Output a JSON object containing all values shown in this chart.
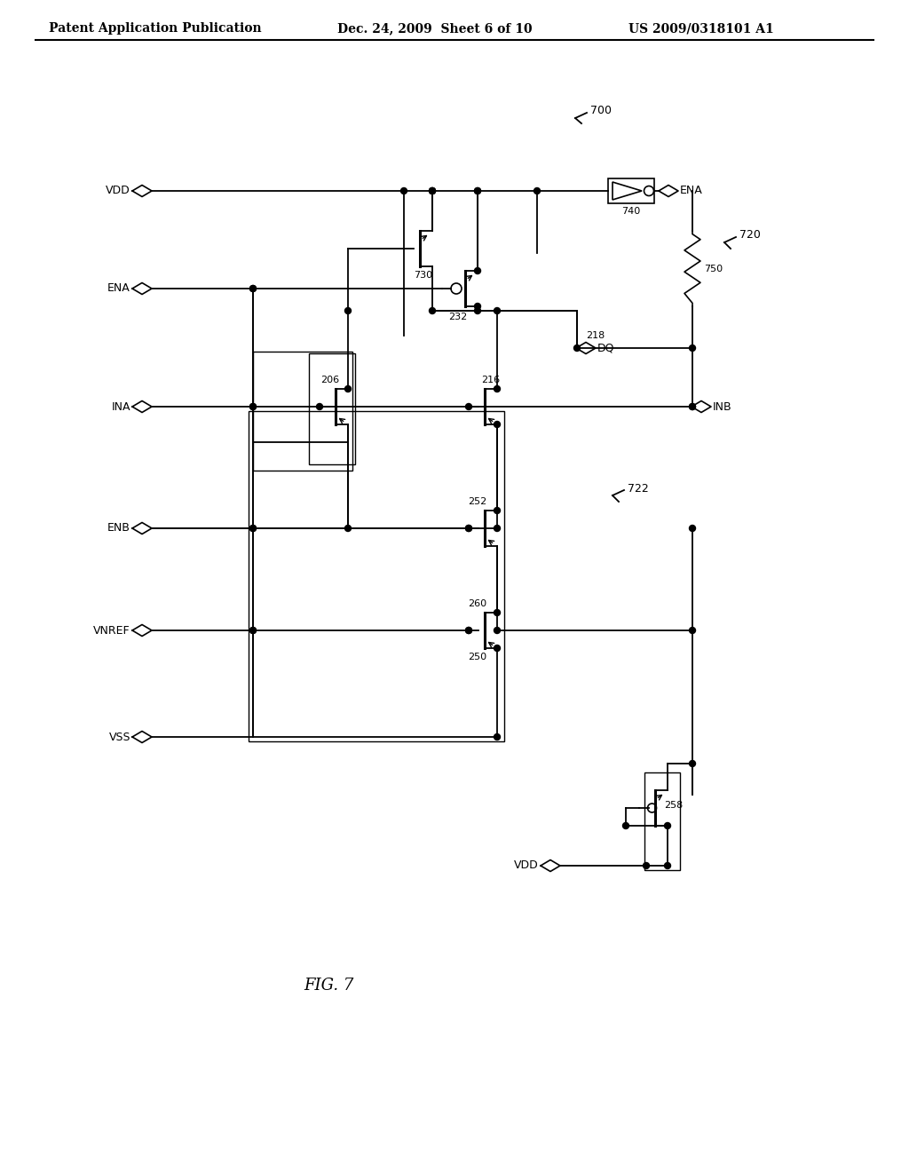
{
  "header_left": "Patent Application Publication",
  "header_mid": "Dec. 24, 2009  Sheet 6 of 10",
  "header_right": "US 2009/0318101 A1",
  "fig_label": "FIG. 7",
  "bg_color": "#ffffff",
  "line_color": "#000000"
}
